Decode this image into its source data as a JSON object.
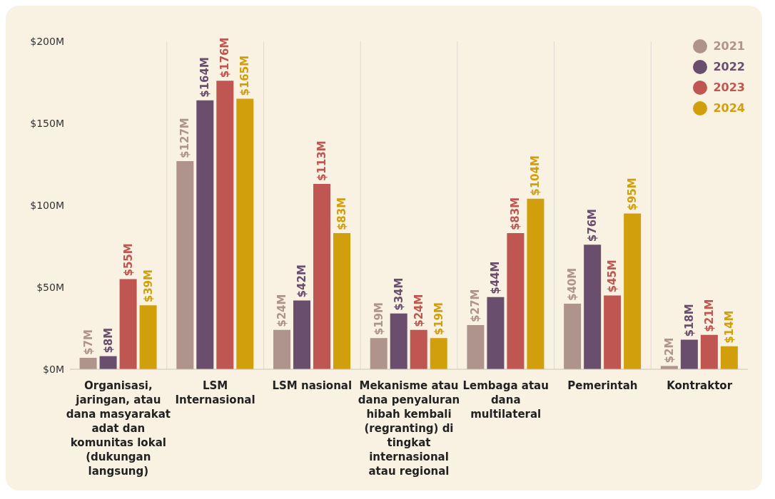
{
  "chart_data": {
    "type": "bar",
    "categories": [
      "Organisasi, jaringan, atau dana masyarakat adat dan komunitas lokal (dukungan langsung)",
      "LSM Internasional",
      "LSM nasional",
      "Mekanisme atau dana penyaluran hibah kembali (regranting) di tingkat internasional atau regional",
      "Lembaga atau dana multilateral",
      "Pemerintah",
      "Kontraktor"
    ],
    "series": [
      {
        "name": "2021",
        "color": "#ae948c",
        "values": [
          7,
          127,
          24,
          19,
          27,
          40,
          2
        ],
        "value_labels": [
          "$7M",
          "$127M",
          "$24M",
          "$19M",
          "$27M",
          "$40M",
          "$2M"
        ]
      },
      {
        "name": "2022",
        "color": "#6a4e6d",
        "values": [
          8,
          164,
          42,
          34,
          44,
          76,
          18
        ],
        "value_labels": [
          "$8M",
          "$164M",
          "$42M",
          "$34M",
          "$44M",
          "$76M",
          "$18M"
        ]
      },
      {
        "name": "2023",
        "color": "#c05651",
        "values": [
          55,
          176,
          113,
          24,
          83,
          45,
          21
        ],
        "value_labels": [
          "$55M",
          "$176M",
          "$113M",
          "$24M",
          "$83M",
          "$45M",
          "$21M"
        ]
      },
      {
        "name": "2024",
        "color": "#d19f0c",
        "values": [
          39,
          165,
          83,
          19,
          104,
          95,
          14
        ],
        "value_labels": [
          "$39M",
          "$165M",
          "$83M",
          "$19M",
          "$104M",
          "$95M",
          "$14M"
        ]
      }
    ],
    "ylim": [
      0,
      200
    ],
    "yticks": [
      {
        "value": 0,
        "label": "$0M"
      },
      {
        "value": 50,
        "label": "$50M"
      },
      {
        "value": 100,
        "label": "$100M"
      },
      {
        "value": 150,
        "label": "$150M"
      },
      {
        "value": 200,
        "label": "$200M"
      }
    ],
    "grid": "x",
    "legend": "top right"
  }
}
